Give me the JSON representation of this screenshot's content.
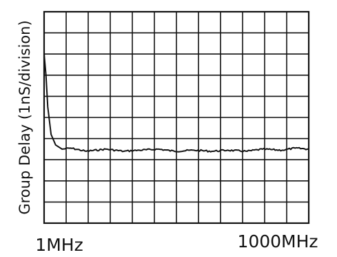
{
  "chart_data": {
    "type": "line",
    "title": "",
    "xlabel": "",
    "ylabel": "Group Delay (1nS/division)",
    "x_scale": "log",
    "xlim": [
      "1MHz",
      "1000MHz"
    ],
    "x_tick_labels": [
      "1MHz",
      "1000MHz"
    ],
    "grid": true,
    "grid_divisions": {
      "x": 12,
      "y": 10
    },
    "y_unit_per_division": "1nS",
    "series": [
      {
        "x_mhz": [
          1,
          1.05,
          1.1,
          1.2,
          1.35,
          1.6,
          2,
          3,
          5,
          8,
          12,
          20,
          30,
          50,
          80,
          120,
          200,
          300,
          500,
          700,
          1000
        ],
        "y_div": [
          8.0,
          7.0,
          5.5,
          4.2,
          3.7,
          3.5,
          3.55,
          3.4,
          3.5,
          3.4,
          3.45,
          3.5,
          3.4,
          3.45,
          3.4,
          3.45,
          3.4,
          3.5,
          3.45,
          3.55,
          3.5
        ]
      }
    ]
  }
}
